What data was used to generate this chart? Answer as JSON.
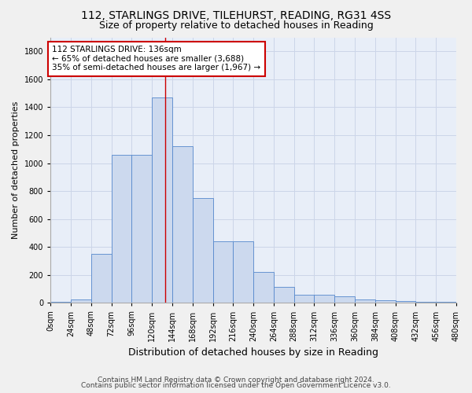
{
  "title_line1": "112, STARLINGS DRIVE, TILEHURST, READING, RG31 4SS",
  "title_line2": "Size of property relative to detached houses in Reading",
  "xlabel": "Distribution of detached houses by size in Reading",
  "ylabel": "Number of detached properties",
  "bar_values": [
    10,
    25,
    350,
    1060,
    1060,
    1470,
    1120,
    750,
    440,
    440,
    220,
    115,
    60,
    60,
    45,
    25,
    20,
    15,
    10,
    10
  ],
  "bin_edges": [
    0,
    24,
    48,
    72,
    96,
    120,
    144,
    168,
    192,
    216,
    240,
    264,
    288,
    312,
    336,
    360,
    384,
    408,
    432,
    456,
    480
  ],
  "tick_labels": [
    "0sqm",
    "24sqm",
    "48sqm",
    "72sqm",
    "96sqm",
    "120sqm",
    "144sqm",
    "168sqm",
    "192sqm",
    "216sqm",
    "240sqm",
    "264sqm",
    "288sqm",
    "312sqm",
    "336sqm",
    "360sqm",
    "384sqm",
    "408sqm",
    "432sqm",
    "456sqm",
    "480sqm"
  ],
  "property_size": 136,
  "vline_color": "#cc0000",
  "bar_facecolor": "#ccd9ee",
  "bar_edgecolor": "#5588cc",
  "annotation_text": "112 STARLINGS DRIVE: 136sqm\n← 65% of detached houses are smaller (3,688)\n35% of semi-detached houses are larger (1,967) →",
  "annotation_box_color": "#ffffff",
  "annotation_border_color": "#cc0000",
  "ylim": [
    0,
    1900
  ],
  "ytick_max": 1800,
  "grid_color": "#ccd5e8",
  "background_color": "#e8eef8",
  "fig_facecolor": "#f0f0f0",
  "footer_line1": "Contains HM Land Registry data © Crown copyright and database right 2024.",
  "footer_line2": "Contains public sector information licensed under the Open Government Licence v3.0.",
  "title_fontsize": 10,
  "subtitle_fontsize": 9,
  "xlabel_fontsize": 9,
  "ylabel_fontsize": 8,
  "tick_fontsize": 7,
  "annotation_fontsize": 7.5,
  "footer_fontsize": 6.5
}
